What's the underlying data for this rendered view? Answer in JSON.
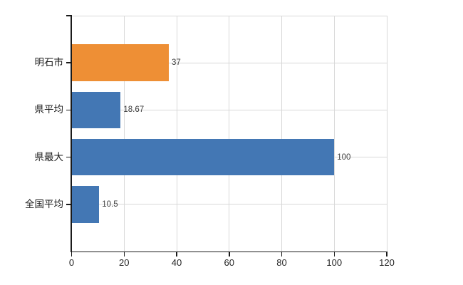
{
  "chart_data": {
    "type": "bar",
    "orientation": "horizontal",
    "title": "",
    "xlabel": "",
    "ylabel": "",
    "categories": [
      "明石市",
      "県平均",
      "県最大",
      "全国平均"
    ],
    "values": [
      37,
      18.67,
      100,
      10.5
    ],
    "value_labels": [
      "37",
      "18.67",
      "100",
      "10.5"
    ],
    "bar_colors": [
      "#EE8F35",
      "#4377B4",
      "#4377B4",
      "#4377B4"
    ],
    "xlim": [
      0,
      120
    ],
    "x_ticks": [
      0,
      20,
      40,
      60,
      80,
      100,
      120
    ],
    "x_tick_labels": [
      "0",
      "20",
      "40",
      "60",
      "80",
      "100",
      "120"
    ],
    "grid": "on",
    "legend": "none",
    "colors": {
      "orange_bar": "#EE8F35",
      "blue_bar": "#4377B4",
      "grid": "#D8D8D8",
      "axis": "#1A1A1A",
      "category_label": "#1B1B1B",
      "tick_label": "#262626",
      "value_label": "#3F3F3F",
      "background": "#FFFFFF"
    }
  }
}
